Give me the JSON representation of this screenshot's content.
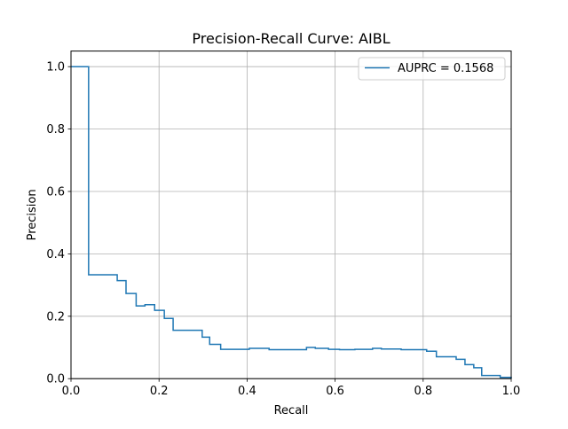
{
  "chart_data": {
    "type": "line",
    "title": "Precision-Recall Curve: AIBL",
    "xlabel": "Recall",
    "ylabel": "Precision",
    "xlim": [
      0.0,
      1.0
    ],
    "ylim": [
      0.0,
      1.05
    ],
    "xticks": [
      "0.0",
      "0.2",
      "0.4",
      "0.6",
      "0.8",
      "1.0"
    ],
    "yticks": [
      "0.0",
      "0.2",
      "0.4",
      "0.6",
      "0.8",
      "1.0"
    ],
    "grid": true,
    "legend_position": "top-right",
    "step": "post",
    "series": [
      {
        "name": "AUPRC = 0.1568",
        "color": "#1f77b4",
        "points": [
          [
            0.0,
            1.0
          ],
          [
            0.04,
            1.0
          ],
          [
            0.04,
            0.333
          ],
          [
            0.105,
            0.333
          ],
          [
            0.105,
            0.314
          ],
          [
            0.125,
            0.314
          ],
          [
            0.125,
            0.273
          ],
          [
            0.148,
            0.273
          ],
          [
            0.148,
            0.233
          ],
          [
            0.168,
            0.233
          ],
          [
            0.168,
            0.237
          ],
          [
            0.19,
            0.237
          ],
          [
            0.19,
            0.219
          ],
          [
            0.212,
            0.219
          ],
          [
            0.212,
            0.193
          ],
          [
            0.232,
            0.193
          ],
          [
            0.232,
            0.155
          ],
          [
            0.298,
            0.155
          ],
          [
            0.298,
            0.133
          ],
          [
            0.315,
            0.133
          ],
          [
            0.315,
            0.11
          ],
          [
            0.34,
            0.11
          ],
          [
            0.34,
            0.094
          ],
          [
            0.405,
            0.094
          ],
          [
            0.405,
            0.097
          ],
          [
            0.45,
            0.097
          ],
          [
            0.45,
            0.093
          ],
          [
            0.535,
            0.093
          ],
          [
            0.535,
            0.1
          ],
          [
            0.555,
            0.1
          ],
          [
            0.555,
            0.097
          ],
          [
            0.585,
            0.097
          ],
          [
            0.585,
            0.094
          ],
          [
            0.61,
            0.094
          ],
          [
            0.61,
            0.093
          ],
          [
            0.645,
            0.093
          ],
          [
            0.645,
            0.094
          ],
          [
            0.685,
            0.094
          ],
          [
            0.685,
            0.097
          ],
          [
            0.705,
            0.097
          ],
          [
            0.705,
            0.095
          ],
          [
            0.75,
            0.095
          ],
          [
            0.75,
            0.093
          ],
          [
            0.808,
            0.093
          ],
          [
            0.808,
            0.088
          ],
          [
            0.83,
            0.088
          ],
          [
            0.83,
            0.07
          ],
          [
            0.875,
            0.07
          ],
          [
            0.875,
            0.062
          ],
          [
            0.895,
            0.062
          ],
          [
            0.895,
            0.045
          ],
          [
            0.915,
            0.045
          ],
          [
            0.915,
            0.035
          ],
          [
            0.933,
            0.035
          ],
          [
            0.933,
            0.01
          ],
          [
            0.975,
            0.01
          ],
          [
            0.975,
            0.004
          ],
          [
            1.0,
            0.004
          ],
          [
            1.0,
            0.0
          ]
        ]
      }
    ]
  }
}
